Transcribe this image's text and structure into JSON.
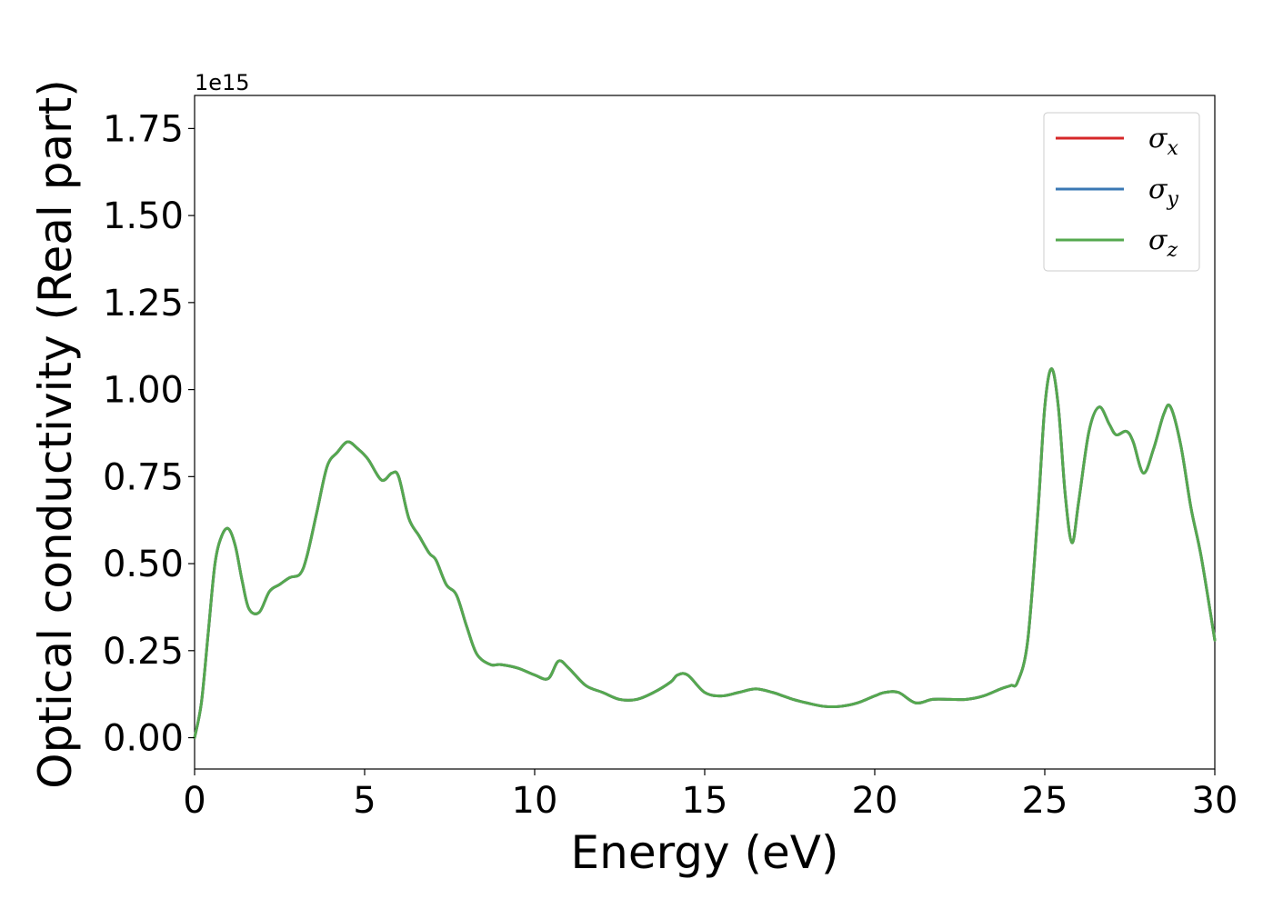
{
  "chart_data": {
    "type": "line",
    "title": "",
    "xlabel": "Energy (eV)",
    "ylabel": "Optical conductivity (Real part)",
    "y_offset_text": "1e15",
    "xlim": [
      0,
      30
    ],
    "ylim": [
      -0.09,
      1.845
    ],
    "xticks": [
      0,
      5,
      10,
      15,
      20,
      25,
      30
    ],
    "yticks": [
      0.0,
      0.25,
      0.5,
      0.75,
      1.0,
      1.25,
      1.5,
      1.75
    ],
    "xtick_labels": [
      "0",
      "5",
      "10",
      "15",
      "20",
      "25",
      "30"
    ],
    "ytick_labels": [
      "0.00",
      "0.25",
      "0.50",
      "0.75",
      "1.00",
      "1.25",
      "1.50",
      "1.75"
    ],
    "grid": false,
    "legend_position": "top-right",
    "x": [
      0,
      0.2,
      0.4,
      0.6,
      0.8,
      1.0,
      1.2,
      1.4,
      1.6,
      1.9,
      2.2,
      2.5,
      2.8,
      3.1,
      3.3,
      3.6,
      3.9,
      4.2,
      4.5,
      4.8,
      5.1,
      5.5,
      5.8,
      6.0,
      6.3,
      6.6,
      6.9,
      7.1,
      7.4,
      7.7,
      8.0,
      8.3,
      8.7,
      9.0,
      9.5,
      10.0,
      10.4,
      10.7,
      11.0,
      11.5,
      12.0,
      12.5,
      13.0,
      13.5,
      14.0,
      14.2,
      14.5,
      15.0,
      15.5,
      16.0,
      16.5,
      17.0,
      17.3,
      17.6,
      18.0,
      18.5,
      19.0,
      19.5,
      20.0,
      20.3,
      20.7,
      21.2,
      21.7,
      22.2,
      22.7,
      23.2,
      23.7,
      24.0,
      24.2,
      24.5,
      24.8,
      25.0,
      25.2,
      25.4,
      25.6,
      25.8,
      26.0,
      26.3,
      26.6,
      26.9,
      27.1,
      27.4,
      27.6,
      27.9,
      28.2,
      28.5,
      28.7,
      29.0,
      29.3,
      29.6,
      30.0
    ],
    "series": [
      {
        "name": "σx",
        "color": "#d62728",
        "values": [
          0.0,
          0.1,
          0.3,
          0.5,
          0.58,
          0.6,
          0.55,
          0.45,
          0.37,
          0.36,
          0.42,
          0.44,
          0.46,
          0.47,
          0.52,
          0.65,
          0.78,
          0.82,
          0.85,
          0.83,
          0.8,
          0.74,
          0.76,
          0.75,
          0.63,
          0.58,
          0.53,
          0.51,
          0.44,
          0.41,
          0.32,
          0.24,
          0.21,
          0.21,
          0.2,
          0.18,
          0.17,
          0.22,
          0.2,
          0.15,
          0.13,
          0.11,
          0.11,
          0.13,
          0.16,
          0.18,
          0.18,
          0.13,
          0.12,
          0.13,
          0.14,
          0.13,
          0.12,
          0.11,
          0.1,
          0.09,
          0.09,
          0.1,
          0.12,
          0.13,
          0.13,
          0.1,
          0.11,
          0.11,
          0.11,
          0.12,
          0.14,
          0.15,
          0.16,
          0.28,
          0.65,
          0.95,
          1.06,
          0.95,
          0.7,
          0.56,
          0.68,
          0.88,
          0.95,
          0.9,
          0.87,
          0.88,
          0.85,
          0.76,
          0.83,
          0.93,
          0.95,
          0.84,
          0.66,
          0.52,
          0.28
        ]
      },
      {
        "name": "σy",
        "color": "#3a78b4",
        "values": [
          0.0,
          0.1,
          0.3,
          0.5,
          0.58,
          0.6,
          0.55,
          0.45,
          0.37,
          0.36,
          0.42,
          0.44,
          0.46,
          0.47,
          0.52,
          0.65,
          0.78,
          0.82,
          0.85,
          0.83,
          0.8,
          0.74,
          0.76,
          0.75,
          0.63,
          0.58,
          0.53,
          0.51,
          0.44,
          0.41,
          0.32,
          0.24,
          0.21,
          0.21,
          0.2,
          0.18,
          0.17,
          0.22,
          0.2,
          0.15,
          0.13,
          0.11,
          0.11,
          0.13,
          0.16,
          0.18,
          0.18,
          0.13,
          0.12,
          0.13,
          0.14,
          0.13,
          0.12,
          0.11,
          0.1,
          0.09,
          0.09,
          0.1,
          0.12,
          0.13,
          0.13,
          0.1,
          0.11,
          0.11,
          0.11,
          0.12,
          0.14,
          0.15,
          0.16,
          0.28,
          0.65,
          0.95,
          1.06,
          0.95,
          0.7,
          0.56,
          0.68,
          0.88,
          0.95,
          0.9,
          0.87,
          0.88,
          0.85,
          0.76,
          0.83,
          0.93,
          0.95,
          0.84,
          0.66,
          0.52,
          0.28
        ]
      },
      {
        "name": "σz",
        "color": "#55a84f",
        "values": [
          0.0,
          0.1,
          0.3,
          0.5,
          0.58,
          0.6,
          0.55,
          0.45,
          0.37,
          0.36,
          0.42,
          0.44,
          0.46,
          0.47,
          0.52,
          0.65,
          0.78,
          0.82,
          0.85,
          0.83,
          0.8,
          0.74,
          0.76,
          0.75,
          0.63,
          0.58,
          0.53,
          0.51,
          0.44,
          0.41,
          0.32,
          0.24,
          0.21,
          0.21,
          0.2,
          0.18,
          0.17,
          0.22,
          0.2,
          0.15,
          0.13,
          0.11,
          0.11,
          0.13,
          0.16,
          0.18,
          0.18,
          0.13,
          0.12,
          0.13,
          0.14,
          0.13,
          0.12,
          0.11,
          0.1,
          0.09,
          0.09,
          0.1,
          0.12,
          0.13,
          0.13,
          0.1,
          0.11,
          0.11,
          0.11,
          0.12,
          0.14,
          0.15,
          0.16,
          0.28,
          0.65,
          0.95,
          1.06,
          0.95,
          0.7,
          0.56,
          0.68,
          0.88,
          0.95,
          0.9,
          0.87,
          0.88,
          0.85,
          0.76,
          0.83,
          0.93,
          0.95,
          0.84,
          0.66,
          0.52,
          0.28
        ]
      }
    ],
    "legend": [
      {
        "symbol": "σ",
        "subscript": "x"
      },
      {
        "symbol": "σ",
        "subscript": "y"
      },
      {
        "symbol": "σ",
        "subscript": "z"
      }
    ]
  }
}
